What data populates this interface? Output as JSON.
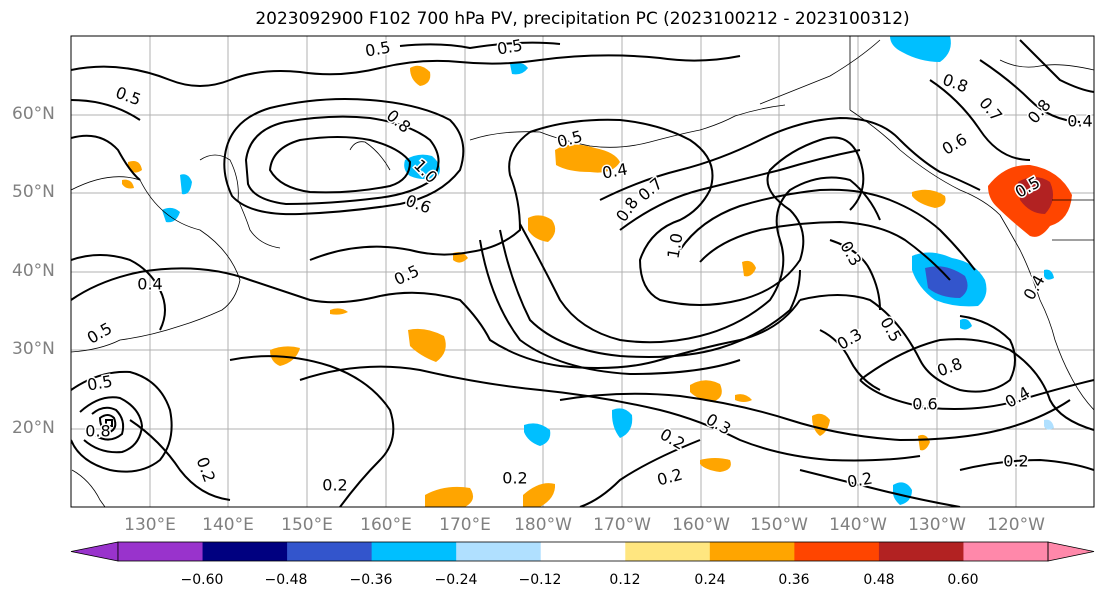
{
  "title": "2023092900 F102 700 hPa PV, precipitation PC (2023100212 - 2023100312)",
  "lat_labels": [
    "60°N",
    "50°N",
    "40°N",
    "30°N",
    "20°N"
  ],
  "lon_labels": [
    "130°E",
    "140°E",
    "150°E",
    "160°E",
    "170°E",
    "180°W",
    "170°W",
    "160°W",
    "150°W",
    "140°W",
    "130°W",
    "120°W"
  ],
  "contour_labels": [
    "0.5",
    "0.5",
    "0.5",
    "0.8",
    "1.0",
    "0.6",
    "0.5",
    "0.4",
    "0.8",
    "0.7",
    "0.5",
    "0.4",
    "0.5",
    "0.3",
    "0.3",
    "0.5",
    "0.8",
    "0.6",
    "0.4",
    "0.2",
    "0.2",
    "0.2",
    "0.2",
    "0.2",
    "0.2",
    "0.3",
    "0.8",
    "0.6",
    "0.7",
    "0.4",
    "0.5",
    "1.0",
    "0.4",
    "0.8",
    "0.2",
    "0.5",
    "0.8"
  ],
  "colorbar": {
    "ticks": [
      "−0.60",
      "−0.48",
      "−0.36",
      "−0.24",
      "−0.12",
      "0.12",
      "0.24",
      "0.36",
      "0.48",
      "0.60"
    ],
    "colors": [
      "#9933cc",
      "#000080",
      "#3355cc",
      "#00bfff",
      "#b0e0ff",
      "#ffffff",
      "#ffe680",
      "#ffa500",
      "#ff4500",
      "#b22222",
      "#ff88aa",
      "#ff88aa"
    ]
  }
}
